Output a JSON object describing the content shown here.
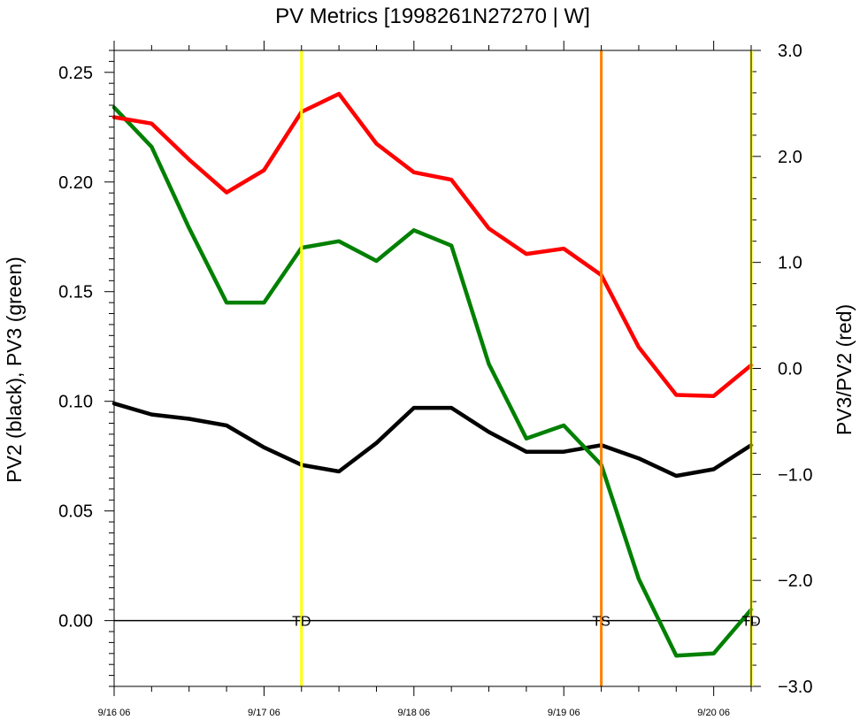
{
  "chart_data": {
    "type": "line",
    "title": "PV Metrics [1998261N27270 | W]",
    "ylabel_left": "PV2 (black), PV3 (green)",
    "ylabel_right": "PV3/PV2 (red)",
    "x_ticks": [
      "9/16 06",
      "9/17 06",
      "9/18 06",
      "9/19 06",
      "9/20 06"
    ],
    "xlim": [
      0,
      17
    ],
    "ylim_left": [
      -0.03,
      0.26
    ],
    "ylim_right": [
      -3.0,
      3.0
    ],
    "left_ticks": [
      0.25,
      0.2,
      0.15,
      0.1,
      0.05,
      0.0
    ],
    "left_tick_labels": [
      "0.25",
      "0.20",
      "0.15",
      "0.10",
      "0.05",
      "0.00"
    ],
    "right_ticks": [
      3.0,
      2.0,
      1.0,
      0.0,
      -1.0,
      -2.0,
      -3.0
    ],
    "right_tick_labels": [
      "3.0",
      "2.0",
      "1.0",
      "0.0",
      "−1.0",
      "−2.0",
      "−3.0"
    ],
    "series": [
      {
        "axis": "left",
        "color": "#000000",
        "x": [
          0,
          1,
          2,
          3,
          4,
          5,
          6,
          7,
          8,
          9,
          10,
          11,
          12,
          13,
          14,
          15,
          16,
          17
        ],
        "values": [
          0.099,
          0.094,
          0.092,
          0.089,
          0.079,
          0.071,
          0.068,
          0.081,
          0.097,
          0.097,
          0.086,
          0.077,
          0.077,
          0.08,
          0.074,
          0.066,
          0.069,
          0.08
        ]
      },
      {
        "axis": "left",
        "color": "#008000",
        "x": [
          0,
          1,
          2,
          3,
          4,
          5,
          6,
          7,
          8,
          9,
          10,
          11,
          12,
          13,
          14,
          15,
          16,
          17
        ],
        "values": [
          0.234,
          0.216,
          0.179,
          0.145,
          0.145,
          0.17,
          0.173,
          0.164,
          0.178,
          0.171,
          0.117,
          0.083,
          0.089,
          0.071,
          0.019,
          -0.016,
          -0.015,
          0.005
        ]
      },
      {
        "axis": "right",
        "color": "#ff0000",
        "x": [
          0,
          1,
          2,
          3,
          4,
          5,
          6,
          7,
          8,
          9,
          10,
          11,
          12,
          13,
          14,
          15,
          16,
          17
        ],
        "values": [
          2.37,
          2.31,
          1.97,
          1.66,
          1.87,
          2.42,
          2.59,
          2.12,
          1.85,
          1.78,
          1.32,
          1.08,
          1.13,
          0.88,
          0.2,
          -0.25,
          -0.26,
          0.03
        ]
      }
    ],
    "vertical_lines": [
      {
        "x": 5.0,
        "color": "#ffff00",
        "label": "TD"
      },
      {
        "x": 13.0,
        "color": "#ff8000",
        "label": "TS"
      },
      {
        "x": 17.0,
        "color": "#ffff00",
        "label": "TD"
      }
    ],
    "zero_line": 0.0
  }
}
